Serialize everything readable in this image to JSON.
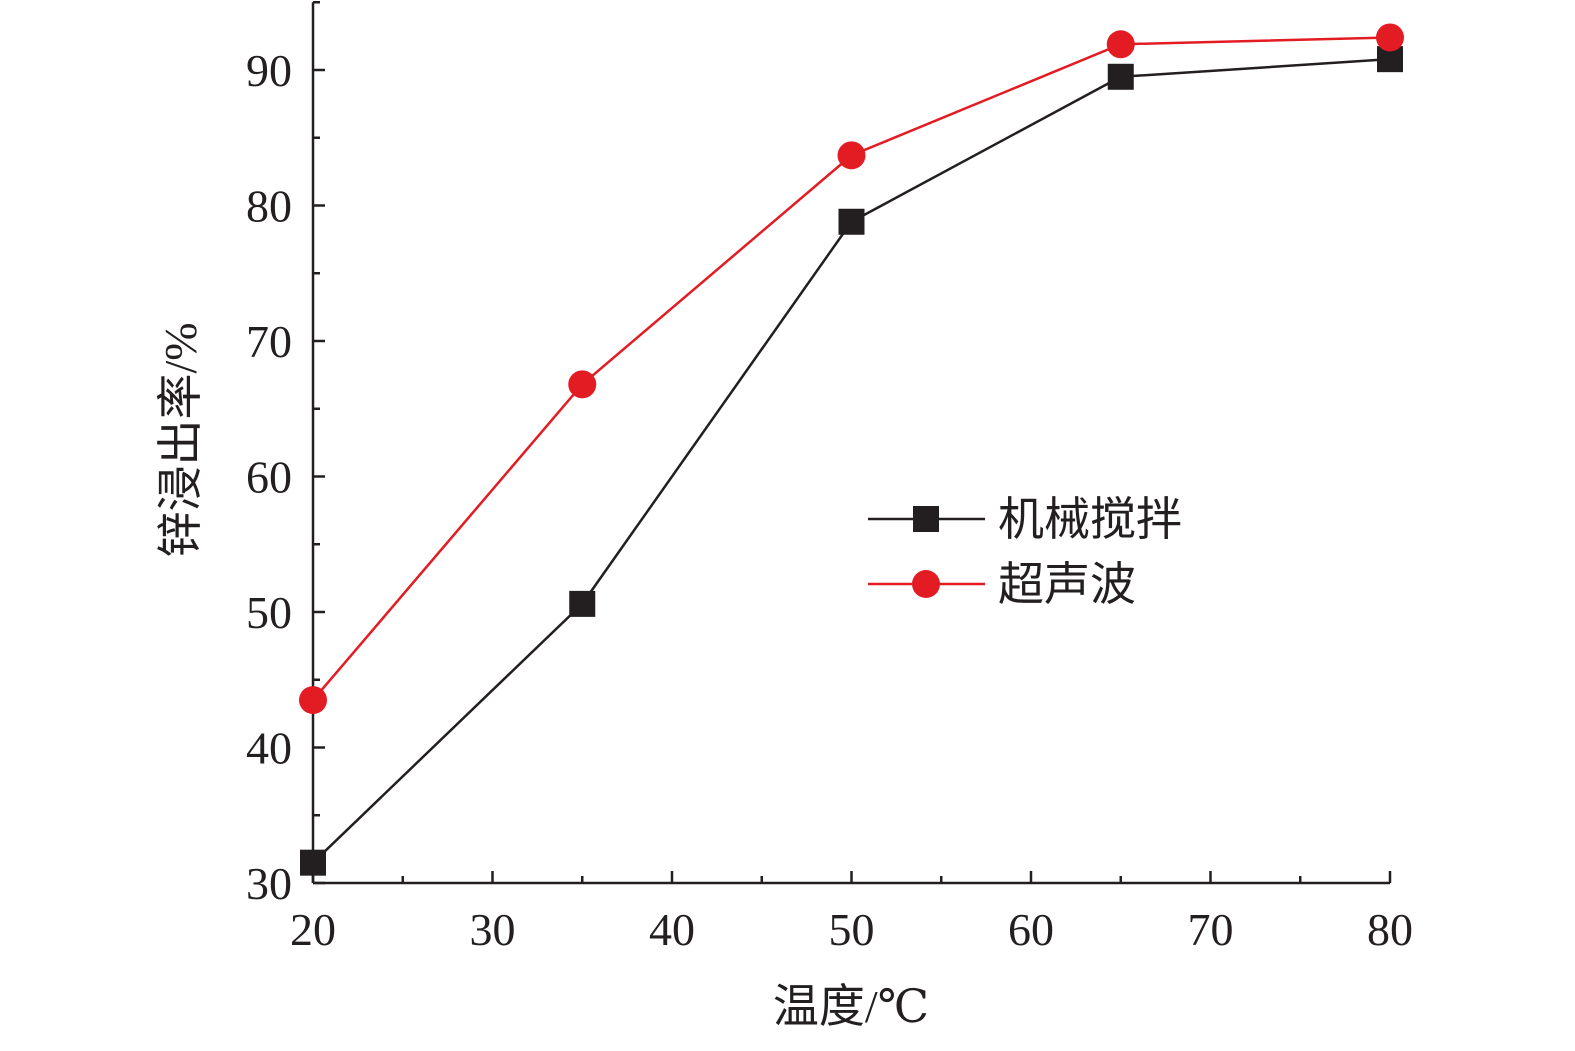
{
  "chart_data": {
    "type": "line",
    "title": "",
    "xlabel": "温度/℃",
    "ylabel": "锌浸出率/%",
    "xlim": [
      20,
      80
    ],
    "ylim": [
      30,
      95
    ],
    "x_ticks": [
      20,
      30,
      40,
      50,
      60,
      70,
      80
    ],
    "x_tick_labels": [
      "20",
      "30",
      "40",
      "50",
      "60",
      "70",
      "80"
    ],
    "y_ticks": [
      30,
      40,
      50,
      60,
      70,
      80,
      90
    ],
    "y_tick_labels": [
      "30",
      "40",
      "50",
      "60",
      "70",
      "80",
      "90"
    ],
    "x": [
      20,
      35,
      50,
      65,
      80
    ],
    "series": [
      {
        "name": "机械搅拌",
        "values": [
          31.5,
          50.6,
          78.8,
          89.5,
          90.8
        ],
        "color": "#231f20",
        "marker": "square"
      },
      {
        "name": "超声波",
        "values": [
          43.5,
          66.8,
          83.7,
          91.9,
          92.4
        ],
        "color": "#e31b23",
        "marker": "circle"
      }
    ],
    "grid": false,
    "legend_position": "center-right"
  }
}
